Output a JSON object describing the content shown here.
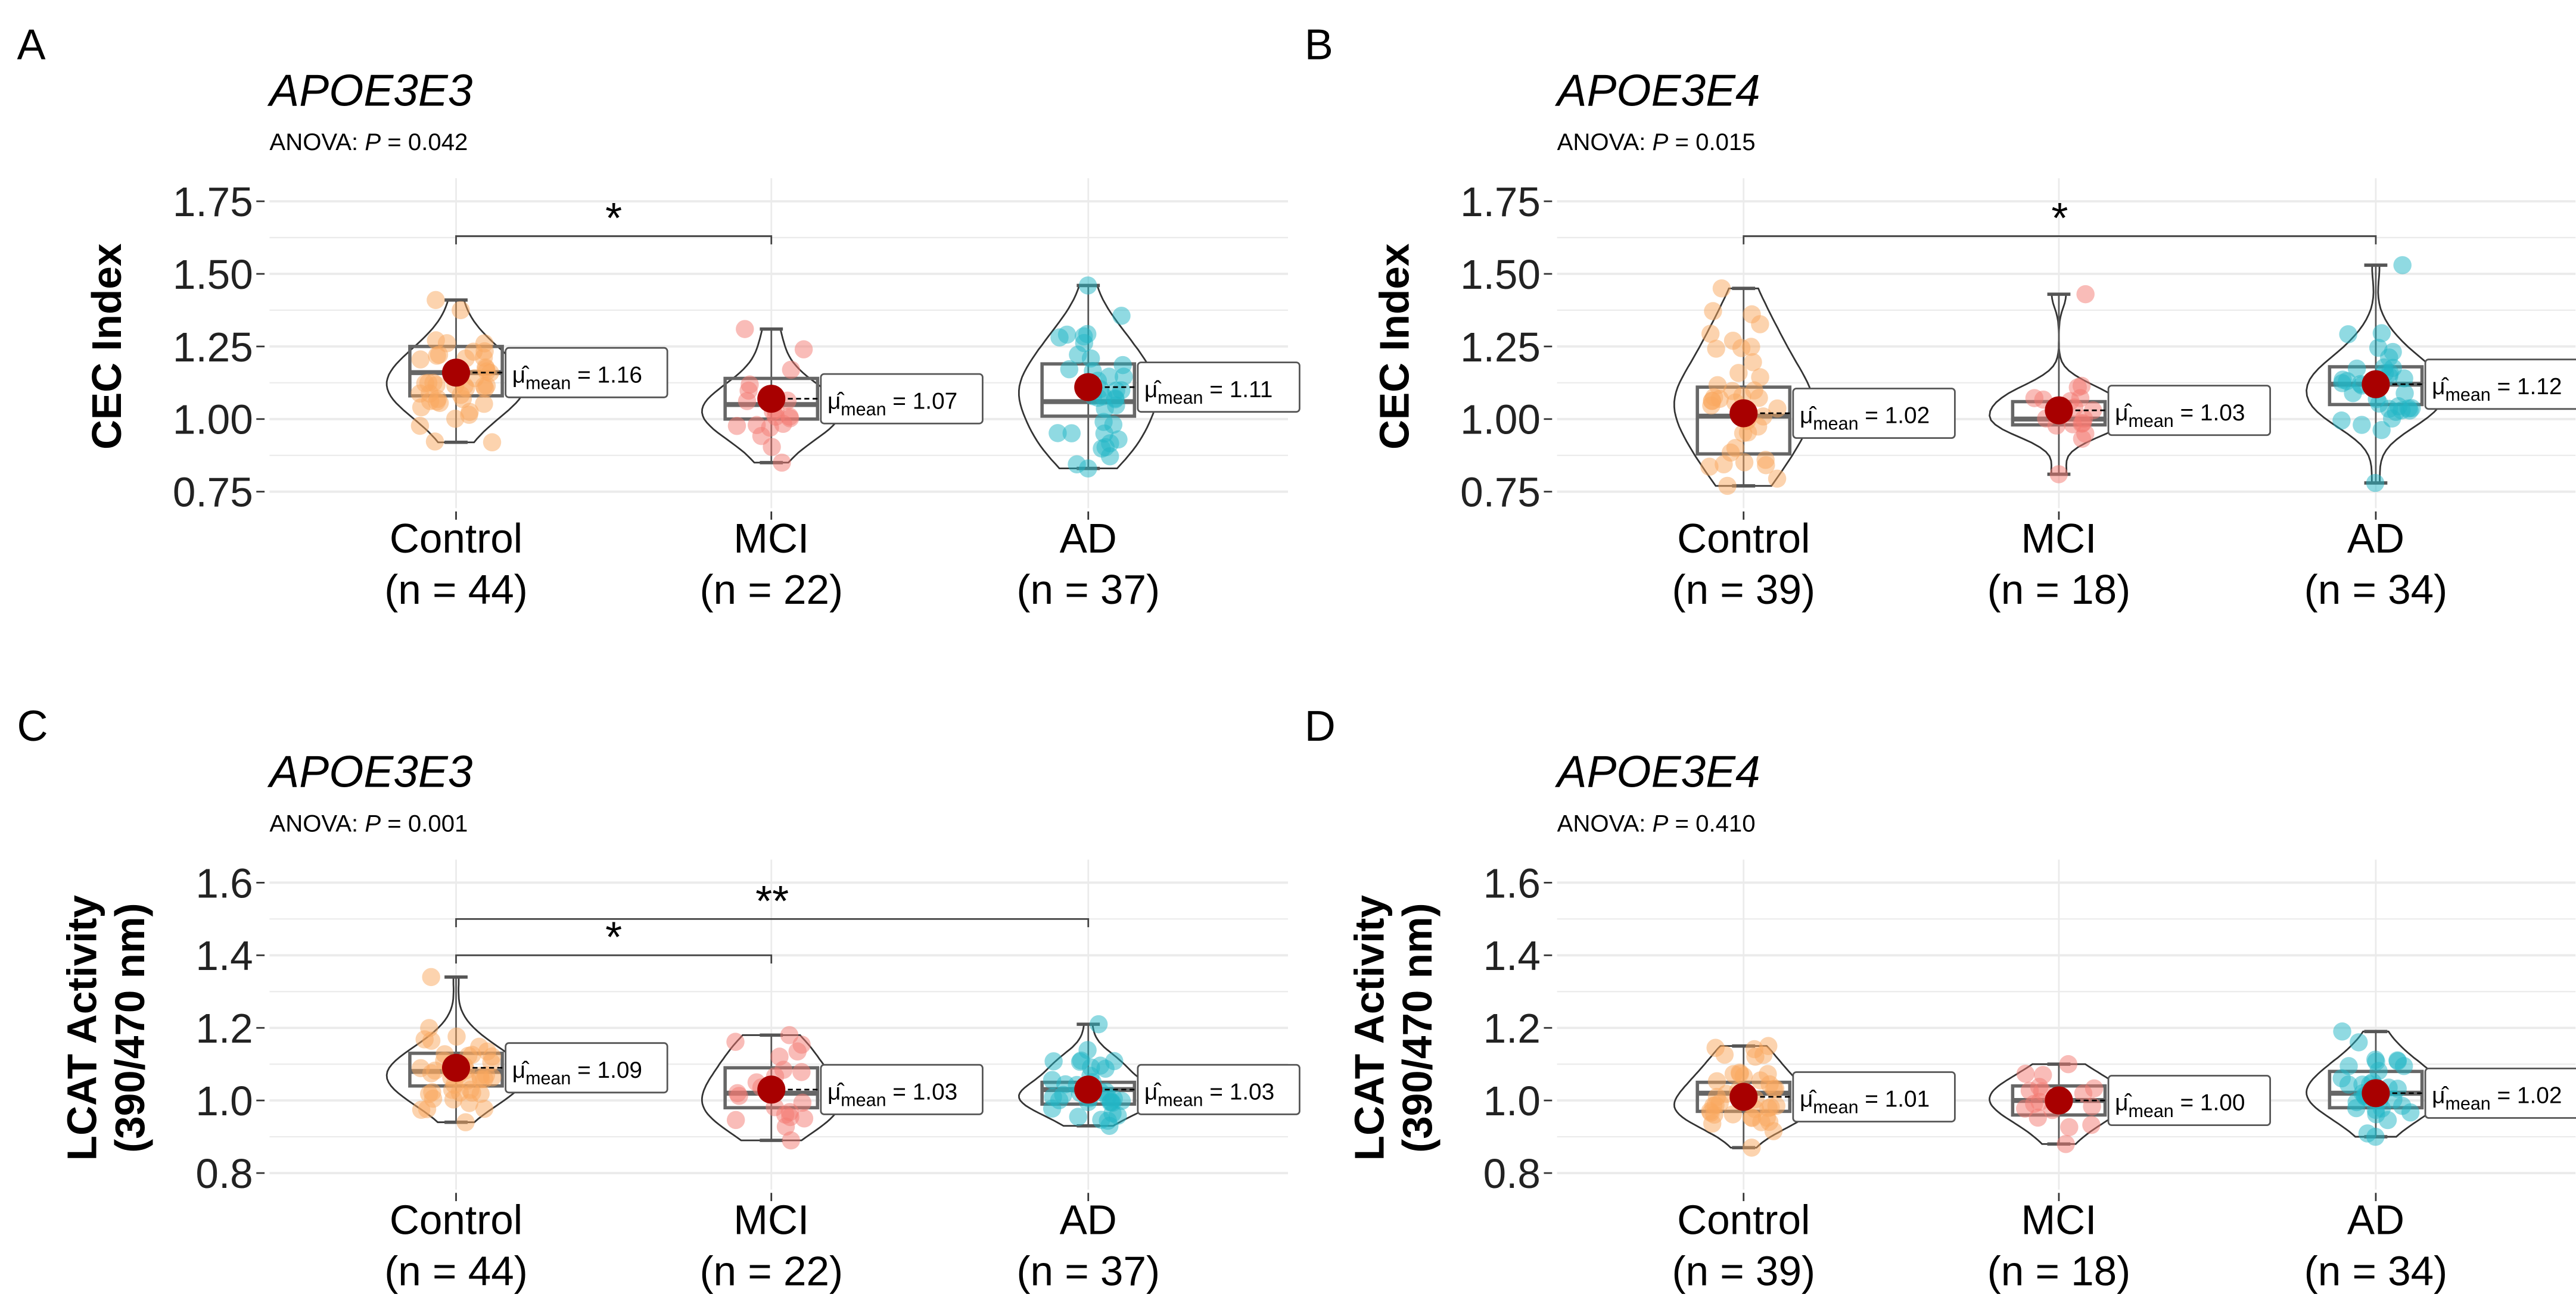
{
  "colors": {
    "Control": "#F9A85E",
    "MCI": "#F47A72",
    "AD": "#22B5C6",
    "mean_dot": "#A80000",
    "grid": "#EBEBEB"
  },
  "chart_data": [
    {
      "letter": "A",
      "type": "violin-box",
      "title": "APOE3E3",
      "anova_label": "ANOVA:",
      "p_symbol": "P",
      "p_value": "= 0.042",
      "ylabel": [
        "CEC Index"
      ],
      "ylim": [
        0.75,
        1.75
      ],
      "yticks": [
        "0.75",
        "1.00",
        "1.25",
        "1.50",
        "1.75"
      ],
      "categories": [
        {
          "name": "Control",
          "n_label": "(n = 44)",
          "n": 44,
          "mean": 1.16,
          "mean_label": "= 1.16",
          "median": 1.16,
          "q1": 1.08,
          "q3": 1.25,
          "min": 0.92,
          "max": 1.41
        },
        {
          "name": "MCI",
          "n_label": "(n = 22)",
          "n": 22,
          "mean": 1.07,
          "mean_label": "= 1.07",
          "median": 1.05,
          "q1": 1.0,
          "q3": 1.14,
          "min": 0.85,
          "max": 1.31
        },
        {
          "name": "AD",
          "n_label": "(n = 37)",
          "n": 37,
          "mean": 1.11,
          "mean_label": "= 1.11",
          "median": 1.06,
          "q1": 1.01,
          "q3": 1.19,
          "min": 0.83,
          "max": 1.46
        }
      ],
      "brackets": [
        {
          "from": 0,
          "to": 1,
          "y": 1.63,
          "label": "*"
        }
      ]
    },
    {
      "letter": "B",
      "type": "violin-box",
      "title": "APOE3E4",
      "anova_label": "ANOVA:",
      "p_symbol": "P",
      "p_value": "= 0.015",
      "ylabel": [
        "CEC Index"
      ],
      "ylim": [
        0.75,
        1.75
      ],
      "yticks": [
        "0.75",
        "1.00",
        "1.25",
        "1.50",
        "1.75"
      ],
      "categories": [
        {
          "name": "Control",
          "n_label": "(n = 39)",
          "n": 39,
          "mean": 1.02,
          "mean_label": "= 1.02",
          "median": 1.01,
          "q1": 0.88,
          "q3": 1.11,
          "min": 0.77,
          "max": 1.45
        },
        {
          "name": "MCI",
          "n_label": "(n = 18)",
          "n": 18,
          "mean": 1.03,
          "mean_label": "= 1.03",
          "median": 1.0,
          "q1": 0.98,
          "q3": 1.06,
          "min": 0.81,
          "max": 1.43
        },
        {
          "name": "AD",
          "n_label": "(n = 34)",
          "n": 34,
          "mean": 1.12,
          "mean_label": "= 1.12",
          "median": 1.12,
          "q1": 1.05,
          "q3": 1.18,
          "min": 0.78,
          "max": 1.53
        }
      ],
      "brackets": [
        {
          "from": 0,
          "to": 2,
          "y": 1.63,
          "label": "*"
        }
      ]
    },
    {
      "letter": "C",
      "type": "violin-box",
      "title": "APOE3E3",
      "anova_label": "ANOVA:",
      "p_symbol": "P",
      "p_value": "= 0.001",
      "ylabel": [
        "LCAT Activity",
        "(390/470 nm)"
      ],
      "ylim": [
        0.8,
        1.6
      ],
      "yticks": [
        "0.8",
        "1.0",
        "1.2",
        "1.4",
        "1.6"
      ],
      "categories": [
        {
          "name": "Control",
          "n_label": "(n = 44)",
          "n": 44,
          "mean": 1.09,
          "mean_label": "= 1.09",
          "median": 1.08,
          "q1": 1.04,
          "q3": 1.13,
          "min": 0.94,
          "max": 1.34
        },
        {
          "name": "MCI",
          "n_label": "(n = 22)",
          "n": 22,
          "mean": 1.03,
          "mean_label": "= 1.03",
          "median": 1.02,
          "q1": 0.98,
          "q3": 1.09,
          "min": 0.89,
          "max": 1.18
        },
        {
          "name": "AD",
          "n_label": "(n = 37)",
          "n": 37,
          "mean": 1.03,
          "mean_label": "= 1.03",
          "median": 1.03,
          "q1": 0.99,
          "q3": 1.05,
          "min": 0.93,
          "max": 1.21
        }
      ],
      "brackets": [
        {
          "from": 0,
          "to": 1,
          "y": 1.4,
          "label": "*"
        },
        {
          "from": 0,
          "to": 2,
          "y": 1.5,
          "label": "**"
        }
      ]
    },
    {
      "letter": "D",
      "type": "violin-box",
      "title": "APOE3E4",
      "anova_label": "ANOVA:",
      "p_symbol": "P",
      "p_value": "= 0.410",
      "ylabel": [
        "LCAT Activity",
        "(390/470 nm)"
      ],
      "ylim": [
        0.8,
        1.6
      ],
      "yticks": [
        "0.8",
        "1.0",
        "1.2",
        "1.4",
        "1.6"
      ],
      "categories": [
        {
          "name": "Control",
          "n_label": "(n = 39)",
          "n": 39,
          "mean": 1.01,
          "mean_label": "= 1.01",
          "median": 1.02,
          "q1": 0.97,
          "q3": 1.05,
          "min": 0.87,
          "max": 1.15
        },
        {
          "name": "MCI",
          "n_label": "(n = 18)",
          "n": 18,
          "mean": 1.0,
          "mean_label": "= 1.00",
          "median": 1.0,
          "q1": 0.96,
          "q3": 1.04,
          "min": 0.88,
          "max": 1.1
        },
        {
          "name": "AD",
          "n_label": "(n = 34)",
          "n": 34,
          "mean": 1.02,
          "mean_label": "= 1.02",
          "median": 1.02,
          "q1": 0.98,
          "q3": 1.08,
          "min": 0.9,
          "max": 1.19
        }
      ],
      "brackets": []
    }
  ]
}
